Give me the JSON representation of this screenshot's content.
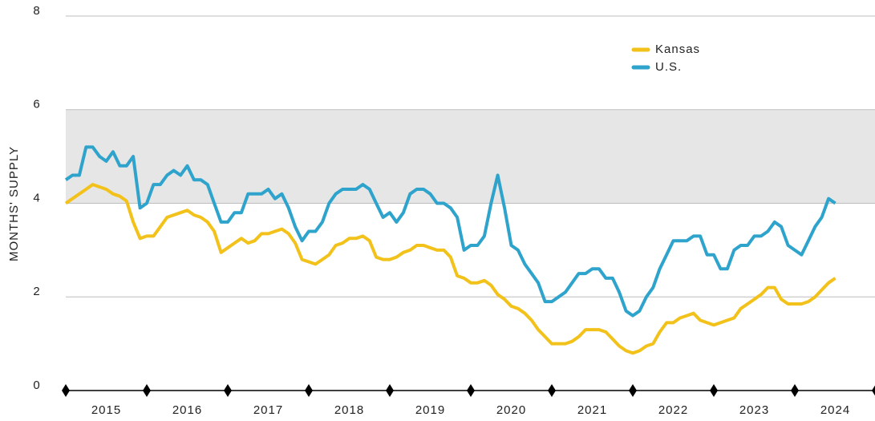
{
  "chart_data": {
    "type": "line",
    "y_label": "MONTHS' SUPPLY",
    "x": [
      2015.0,
      2015.083,
      2015.167,
      2015.25,
      2015.333,
      2015.417,
      2015.5,
      2015.583,
      2015.667,
      2015.75,
      2015.833,
      2015.917,
      2016.0,
      2016.083,
      2016.167,
      2016.25,
      2016.333,
      2016.417,
      2016.5,
      2016.583,
      2016.667,
      2016.75,
      2016.833,
      2016.917,
      2017.0,
      2017.083,
      2017.167,
      2017.25,
      2017.333,
      2017.417,
      2017.5,
      2017.583,
      2017.667,
      2017.75,
      2017.833,
      2017.917,
      2018.0,
      2018.083,
      2018.167,
      2018.25,
      2018.333,
      2018.417,
      2018.5,
      2018.583,
      2018.667,
      2018.75,
      2018.833,
      2018.917,
      2019.0,
      2019.083,
      2019.167,
      2019.25,
      2019.333,
      2019.417,
      2019.5,
      2019.583,
      2019.667,
      2019.75,
      2019.833,
      2019.917,
      2020.0,
      2020.083,
      2020.167,
      2020.25,
      2020.333,
      2020.417,
      2020.5,
      2020.583,
      2020.667,
      2020.75,
      2020.833,
      2020.917,
      2021.0,
      2021.083,
      2021.167,
      2021.25,
      2021.333,
      2021.417,
      2021.5,
      2021.583,
      2021.667,
      2021.75,
      2021.833,
      2021.917,
      2022.0,
      2022.083,
      2022.167,
      2022.25,
      2022.333,
      2022.417,
      2022.5,
      2022.583,
      2022.667,
      2022.75,
      2022.833,
      2022.917,
      2023.0,
      2023.083,
      2023.167,
      2023.25,
      2023.333,
      2023.417,
      2023.5,
      2023.583,
      2023.667,
      2023.75,
      2023.833,
      2023.917,
      2024.0,
      2024.083,
      2024.167,
      2024.25,
      2024.333,
      2024.417,
      2024.5
    ],
    "series": [
      {
        "name": "Kansas",
        "color": "#f2c21b",
        "values": [
          4.0,
          4.1,
          4.2,
          4.3,
          4.4,
          4.35,
          4.3,
          4.2,
          4.15,
          4.05,
          3.6,
          3.25,
          3.3,
          3.3,
          3.5,
          3.7,
          3.75,
          3.8,
          3.85,
          3.75,
          3.7,
          3.6,
          3.4,
          2.95,
          3.05,
          3.15,
          3.25,
          3.15,
          3.2,
          3.35,
          3.35,
          3.4,
          3.45,
          3.35,
          3.15,
          2.8,
          2.75,
          2.7,
          2.8,
          2.9,
          3.1,
          3.15,
          3.25,
          3.25,
          3.3,
          3.2,
          2.85,
          2.8,
          2.8,
          2.85,
          2.95,
          3.0,
          3.1,
          3.1,
          3.05,
          3.0,
          3.0,
          2.85,
          2.45,
          2.4,
          2.3,
          2.3,
          2.35,
          2.25,
          2.05,
          1.95,
          1.8,
          1.75,
          1.65,
          1.5,
          1.3,
          1.15,
          1.0,
          1.0,
          1.0,
          1.05,
          1.15,
          1.3,
          1.3,
          1.3,
          1.25,
          1.1,
          0.95,
          0.85,
          0.8,
          0.85,
          0.95,
          1.0,
          1.25,
          1.45,
          1.45,
          1.55,
          1.6,
          1.65,
          1.5,
          1.45,
          1.4,
          1.45,
          1.5,
          1.55,
          1.75,
          1.85,
          1.95,
          2.05,
          2.2,
          2.2,
          1.95,
          1.85,
          1.85,
          1.85,
          1.9,
          2.0,
          2.15,
          2.3,
          2.4
        ]
      },
      {
        "name": "U.S.",
        "color": "#2ea3cc",
        "values": [
          4.5,
          4.6,
          4.6,
          5.2,
          5.2,
          5.0,
          4.9,
          5.1,
          4.8,
          4.8,
          5.0,
          3.9,
          4.0,
          4.4,
          4.4,
          4.6,
          4.7,
          4.6,
          4.8,
          4.5,
          4.5,
          4.4,
          4.0,
          3.6,
          3.6,
          3.8,
          3.8,
          4.2,
          4.2,
          4.2,
          4.3,
          4.1,
          4.2,
          3.9,
          3.5,
          3.2,
          3.4,
          3.4,
          3.6,
          4.0,
          4.2,
          4.3,
          4.3,
          4.3,
          4.4,
          4.3,
          4.0,
          3.7,
          3.8,
          3.6,
          3.8,
          4.2,
          4.3,
          4.3,
          4.2,
          4.0,
          4.0,
          3.9,
          3.7,
          3.0,
          3.1,
          3.1,
          3.3,
          4.0,
          4.6,
          3.9,
          3.1,
          3.0,
          2.7,
          2.5,
          2.3,
          1.9,
          1.9,
          2.0,
          2.1,
          2.3,
          2.5,
          2.5,
          2.6,
          2.6,
          2.4,
          2.4,
          2.1,
          1.7,
          1.6,
          1.7,
          2.0,
          2.2,
          2.6,
          2.9,
          3.2,
          3.2,
          3.2,
          3.3,
          3.3,
          2.9,
          2.9,
          2.6,
          2.6,
          3.0,
          3.1,
          3.1,
          3.3,
          3.3,
          3.4,
          3.6,
          3.5,
          3.1,
          3.0,
          2.9,
          3.2,
          3.5,
          3.7,
          4.1,
          4.0
        ]
      }
    ],
    "xlim": [
      2015,
      2025
    ],
    "xticks": [
      {
        "value": 2015.5,
        "label": "2015"
      },
      {
        "value": 2016.5,
        "label": "2016"
      },
      {
        "value": 2017.5,
        "label": "2017"
      },
      {
        "value": 2018.5,
        "label": "2018"
      },
      {
        "value": 2019.5,
        "label": "2019"
      },
      {
        "value": 2020.5,
        "label": "2020"
      },
      {
        "value": 2021.5,
        "label": "2021"
      },
      {
        "value": 2022.5,
        "label": "2022"
      },
      {
        "value": 2023.5,
        "label": "2023"
      },
      {
        "value": 2024.5,
        "label": "2024"
      }
    ],
    "x_markers": [
      2015,
      2016,
      2017,
      2018,
      2019,
      2020,
      2021,
      2022,
      2023,
      2024,
      2025
    ],
    "ylim": [
      0,
      8
    ],
    "yticks": [
      0,
      2,
      4,
      6,
      8
    ],
    "shaded_band": [
      4,
      6
    ],
    "grid": true,
    "legend": "upper right"
  }
}
